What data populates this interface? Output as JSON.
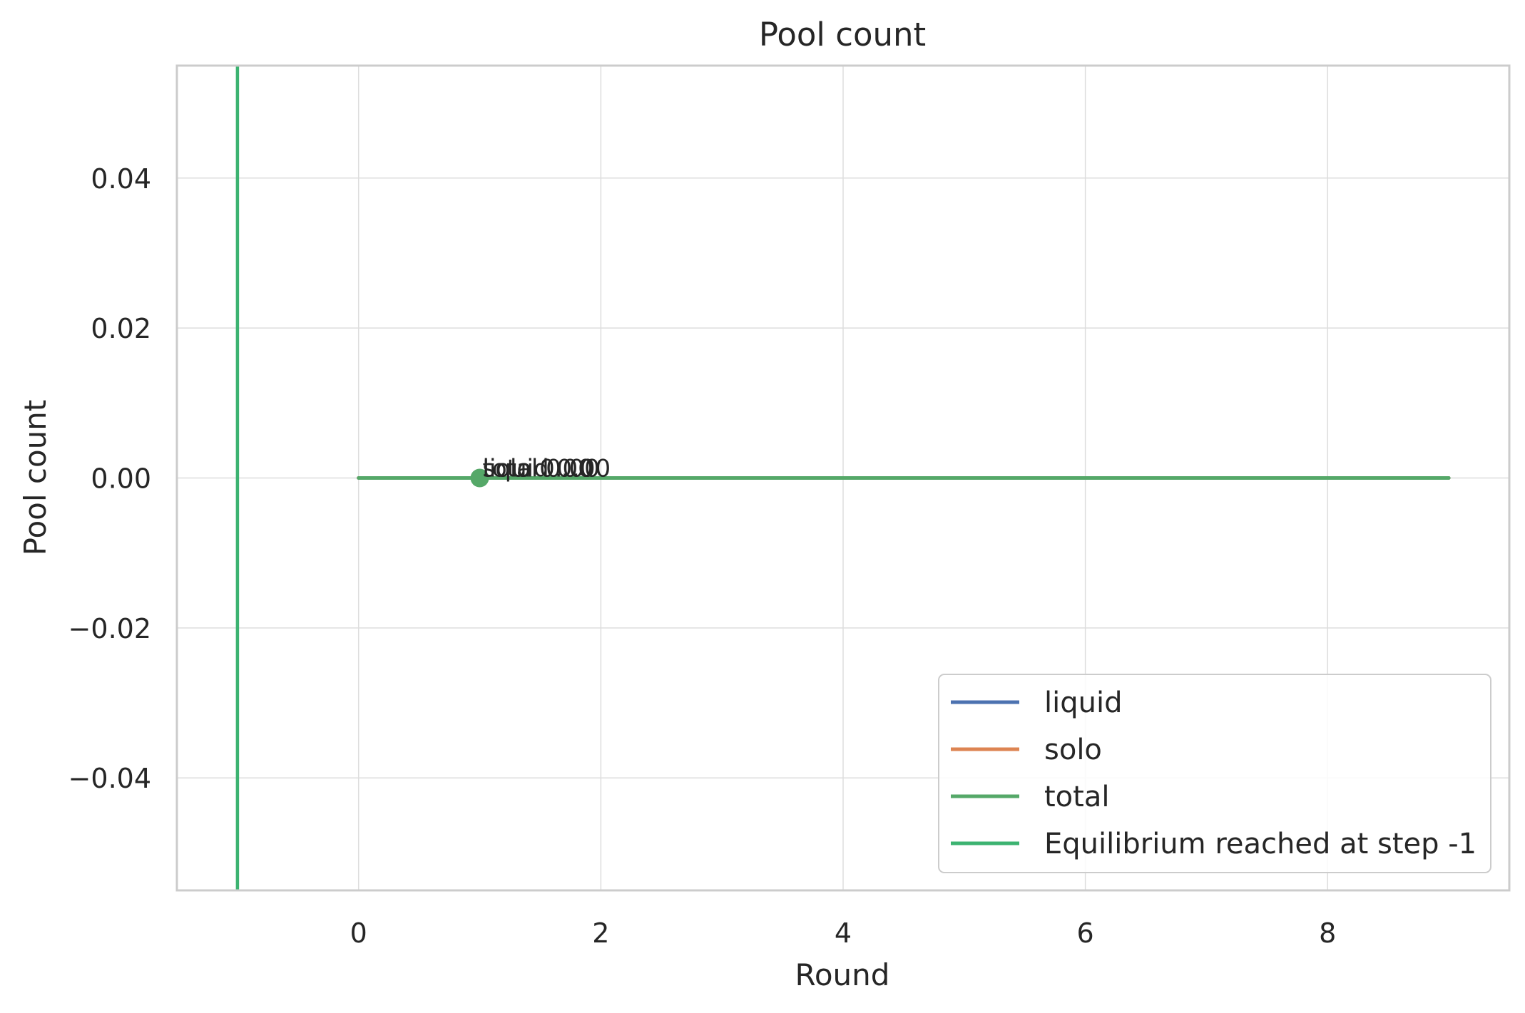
{
  "chart_data": {
    "type": "line",
    "title": "Pool count",
    "xlabel": "Round",
    "ylabel": "Pool count",
    "xlim": [
      -1.5,
      9.5
    ],
    "ylim": [
      -0.055,
      0.055
    ],
    "xticks": [
      0,
      2,
      4,
      6,
      8
    ],
    "xtick_labels": [
      "0",
      "2",
      "4",
      "6",
      "8"
    ],
    "yticks": [
      -0.04,
      -0.02,
      0.0,
      0.02,
      0.04
    ],
    "ytick_labels": [
      "−0.04",
      "−0.02",
      "0.00",
      "0.02",
      "0.04"
    ],
    "grid": true,
    "legend_position": "lower-right",
    "series": [
      {
        "name": "liquid",
        "color": "#4c72b0",
        "x": [
          0,
          1,
          2,
          3,
          4,
          5,
          6,
          7,
          8,
          9
        ],
        "y": [
          0,
          0,
          0,
          0,
          0,
          0,
          0,
          0,
          0,
          0
        ]
      },
      {
        "name": "solo",
        "color": "#dd8452",
        "x": [
          0,
          1,
          2,
          3,
          4,
          5,
          6,
          7,
          8,
          9
        ],
        "y": [
          0,
          0,
          0,
          0,
          0,
          0,
          0,
          0,
          0,
          0
        ]
      },
      {
        "name": "total",
        "color": "#55a868",
        "x": [
          0,
          1,
          2,
          3,
          4,
          5,
          6,
          7,
          8,
          9
        ],
        "y": [
          0,
          0,
          0,
          0,
          0,
          0,
          0,
          0,
          0,
          0
        ]
      }
    ],
    "vline": {
      "x": -1,
      "label": "Equilibrium reached at step -1",
      "color": "#3cb371"
    },
    "marker": {
      "x": 1,
      "y": 0,
      "color": "#55a868"
    },
    "annotations": [
      {
        "x": 1,
        "y": 0,
        "text": "liquid 0.00"
      },
      {
        "x": 1,
        "y": 0,
        "text": "solo 0.00"
      },
      {
        "x": 1,
        "y": 0,
        "text": "total 0.00"
      }
    ]
  }
}
